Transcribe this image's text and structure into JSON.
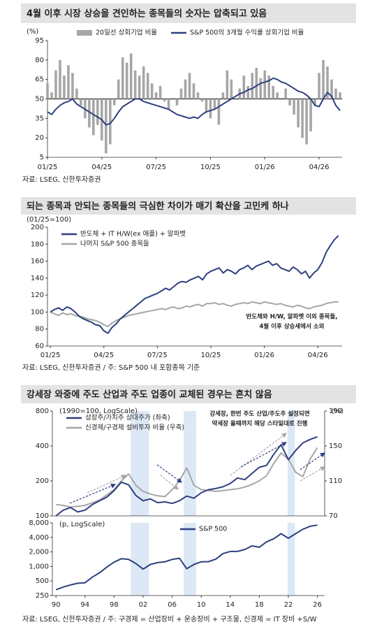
{
  "chart_data": [
    {
      "type": "combo",
      "title": "4월 이후 시장 상승을 견인하는 종목들의 숫자는 압축되고 있음",
      "y_unit": "(%)",
      "x": [
        0,
        1,
        2,
        3,
        4,
        5,
        6,
        7,
        8,
        9,
        10,
        11,
        12,
        13,
        14,
        15,
        16,
        17,
        18,
        19,
        20,
        21,
        22,
        23,
        24,
        25,
        26,
        27,
        28,
        29,
        30,
        31,
        32,
        33,
        34,
        35,
        36,
        37,
        38,
        39,
        40,
        41,
        42,
        43,
        44,
        45,
        46,
        47,
        48,
        49,
        50,
        51,
        52,
        53,
        54,
        55,
        56,
        57,
        58,
        59,
        60,
        61,
        62,
        63,
        64,
        65,
        66,
        67,
        68,
        69,
        70
      ],
      "xlim": [
        0,
        70.5
      ],
      "xticks": [
        {
          "value": 0,
          "label": "01/25"
        },
        {
          "value": 13,
          "label": "04/25"
        },
        {
          "value": 26,
          "label": "07/25"
        },
        {
          "value": 39,
          "label": "10/25"
        },
        {
          "value": 52,
          "label": "01/26"
        },
        {
          "value": 65,
          "label": "04/26"
        }
      ],
      "ylim": [
        5,
        95
      ],
      "yticks": [
        5,
        20,
        35,
        50,
        65,
        80,
        95
      ],
      "reference_line": 50,
      "legend": "top",
      "series": [
        {
          "name": "20일선 상회기업 비율",
          "type": "bar",
          "color": "#a6a6a6",
          "values": [
            62,
            55,
            72,
            80,
            68,
            76,
            70,
            58,
            45,
            35,
            28,
            22,
            30,
            18,
            8,
            15,
            45,
            65,
            82,
            78,
            85,
            72,
            68,
            75,
            70,
            62,
            55,
            60,
            48,
            42,
            50,
            45,
            58,
            65,
            70,
            62,
            55,
            48,
            40,
            35,
            42,
            30,
            55,
            72,
            65,
            50,
            58,
            68,
            60,
            70,
            74,
            66,
            72,
            68,
            60,
            55,
            50,
            58,
            45,
            38,
            28,
            20,
            15,
            25,
            45,
            70,
            80,
            75,
            65,
            58,
            55
          ]
        },
        {
          "name": "S&P 500의 3개월 수익률 상회기업 비율",
          "type": "line",
          "color": "#2e3f80",
          "values": [
            40,
            38,
            42,
            45,
            47,
            48,
            50,
            46,
            44,
            42,
            40,
            38,
            36,
            34,
            30,
            31,
            35,
            40,
            44,
            46,
            48,
            50,
            50,
            48,
            47,
            46,
            45,
            44,
            43,
            42,
            40,
            38,
            37,
            36,
            35,
            36,
            35,
            38,
            40,
            41,
            42,
            44,
            46,
            48,
            50,
            52,
            54,
            55,
            57,
            58,
            60,
            62,
            63,
            64,
            66,
            65,
            63,
            62,
            60,
            58,
            56,
            55,
            53,
            50,
            45,
            44,
            50,
            55,
            52,
            45,
            41
          ]
        }
      ],
      "source": "자료: LSEG, 신한투자증권"
    },
    {
      "type": "line",
      "title": "되는 종목과 안되는 종목들의 극심한 차이가 매기 확산을 고민케 하나",
      "y_unit": "(01/25=100)",
      "x": [
        0,
        1,
        2,
        3,
        4,
        5,
        6,
        7,
        8,
        9,
        10,
        11,
        12,
        13,
        14,
        15,
        16,
        17,
        18,
        19,
        20,
        21,
        22,
        23,
        24,
        25,
        26,
        27,
        28,
        29,
        30,
        31,
        32,
        33,
        34,
        35,
        36,
        37,
        38,
        39,
        40,
        41,
        42,
        43,
        44,
        45,
        46,
        47,
        48,
        49,
        50,
        51,
        52,
        53,
        54,
        55,
        56,
        57,
        58,
        59,
        60,
        61,
        62,
        63,
        64,
        65,
        66,
        67,
        68,
        69,
        70
      ],
      "xlim": [
        -0.7,
        70.9
      ],
      "xticks": [
        {
          "value": 0,
          "label": "01/25"
        },
        {
          "value": 13,
          "label": "04/25"
        },
        {
          "value": 26,
          "label": "07/25"
        },
        {
          "value": 39,
          "label": "10/25"
        },
        {
          "value": 52,
          "label": "01/26"
        },
        {
          "value": 65,
          "label": "04/26"
        }
      ],
      "ylim": [
        60,
        200
      ],
      "yticks": [
        60,
        80,
        100,
        120,
        140,
        160,
        180,
        200
      ],
      "legend": "upper left",
      "series": [
        {
          "name": "반도체 + IT H/W(ex 애플) + 알파벳",
          "color": "#2e3f80",
          "values": [
            100,
            103,
            105,
            102,
            106,
            104,
            100,
            95,
            92,
            90,
            88,
            85,
            84,
            78,
            75,
            82,
            86,
            92,
            96,
            100,
            104,
            108,
            112,
            116,
            118,
            120,
            122,
            125,
            128,
            126,
            130,
            134,
            136,
            135,
            138,
            140,
            142,
            138,
            145,
            148,
            150,
            152,
            146,
            150,
            148,
            145,
            150,
            152,
            155,
            150,
            154,
            156,
            158,
            160,
            155,
            157,
            152,
            150,
            148,
            153,
            150,
            145,
            148,
            140,
            146,
            150,
            158,
            170,
            178,
            185,
            190
          ]
        },
        {
          "name": "나머지 S&P 500 종목들",
          "color": "#a6a6a6",
          "values": [
            100,
            98,
            96,
            99,
            97,
            98,
            96,
            95,
            94,
            92,
            91,
            90,
            88,
            85,
            83,
            87,
            90,
            92,
            94,
            96,
            97,
            98,
            99,
            100,
            101,
            102,
            103,
            104,
            103,
            105,
            106,
            104,
            105,
            107,
            106,
            108,
            109,
            107,
            110,
            110,
            111,
            109,
            110,
            108,
            107,
            109,
            110,
            111,
            110,
            112,
            111,
            110,
            112,
            111,
            110,
            109,
            110,
            108,
            107,
            106,
            108,
            107,
            105,
            104,
            106,
            107,
            108,
            110,
            111,
            112,
            112
          ]
        }
      ],
      "annotation": [
        "반도체와 H/W, 알파벳 이외 종목들,",
        "4월 이후 상승세에서 소외"
      ],
      "source": "자료: LSEG, 신한투자증권 / 주: S&P 500 내 포함종목 기준"
    },
    {
      "type": "line",
      "title": "강세장 와중에 주도 산업과 주도 업종이 교체된 경우는 흔치 않음",
      "y_unit": "(1990=100, LogScale)",
      "y2_unit": "(%)",
      "log_scale": true,
      "x": [
        1990,
        1991,
        1992,
        1993,
        1994,
        1995,
        1996,
        1997,
        1998,
        1999,
        2000,
        2001,
        2002,
        2003,
        2004,
        2005,
        2006,
        2007,
        2008,
        2009,
        2010,
        2011,
        2012,
        2013,
        2014,
        2015,
        2016,
        2017,
        2018,
        2019,
        2020,
        2021,
        2022,
        2023,
        2024,
        2025,
        2026
      ],
      "xlim": [
        1989.5,
        2027
      ],
      "ylim": [
        100,
        800
      ],
      "yticks": [
        100,
        200,
        400,
        800
      ],
      "y2lim": [
        70,
        190
      ],
      "y2ticks": [
        70,
        110,
        150,
        190
      ],
      "highlight_ranges": [
        [
          2000.3,
          2002.8
        ],
        [
          2007.6,
          2009.3
        ],
        [
          2021.9,
          2022.9
        ]
      ],
      "legend": "upper left",
      "series": [
        {
          "name": "성장주/가치주 상대주가 (좌축)",
          "color": "#2e3f80",
          "values": [
            100,
            112,
            118,
            108,
            112,
            125,
            135,
            145,
            165,
            195,
            185,
            150,
            135,
            140,
            130,
            132,
            128,
            135,
            148,
            142,
            158,
            168,
            172,
            178,
            190,
            212,
            205,
            232,
            262,
            272,
            340,
            410,
            305,
            365,
            425,
            455,
            480
          ]
        },
        {
          "name": "신경제/구경제 설비투자 비율 (우축)",
          "color": "#a6a6a6",
          "axis": "y2",
          "values": [
            83,
            82,
            80,
            81,
            82,
            85,
            88,
            94,
            100,
            110,
            118,
            105,
            98,
            95,
            93,
            92,
            100,
            110,
            125,
            105,
            100,
            99,
            98,
            99,
            100,
            101,
            103,
            106,
            110,
            116,
            130,
            142,
            135,
            120,
            115,
            135,
            148
          ]
        }
      ],
      "annotation": [
        "강세장, 한번 주도 산업/주도주 설정되면",
        "약세장 올때까지 해당 스타일대로 진행"
      ]
    },
    {
      "type": "line",
      "y_unit": "(p, LogScale)",
      "log_scale": true,
      "x": [
        1990,
        1991,
        1992,
        1993,
        1994,
        1995,
        1996,
        1997,
        1998,
        1999,
        2000,
        2001,
        2002,
        2003,
        2004,
        2005,
        2006,
        2007,
        2008,
        2009,
        2010,
        2011,
        2012,
        2013,
        2014,
        2015,
        2016,
        2017,
        2018,
        2019,
        2020,
        2021,
        2022,
        2023,
        2024,
        2025,
        2026
      ],
      "xlim": [
        1989.5,
        2027
      ],
      "xticks": [
        {
          "value": 1990,
          "label": "90"
        },
        {
          "value": 1994,
          "label": "94"
        },
        {
          "value": 1998,
          "label": "98"
        },
        {
          "value": 2002,
          "label": "02"
        },
        {
          "value": 2006,
          "label": "06"
        },
        {
          "value": 2010,
          "label": "10"
        },
        {
          "value": 2014,
          "label": "14"
        },
        {
          "value": 2018,
          "label": "18"
        },
        {
          "value": 2022,
          "label": "22"
        },
        {
          "value": 2026,
          "label": "26"
        }
      ],
      "ylim": [
        250,
        8000
      ],
      "yticks": [
        250,
        500,
        {
          "value": 1000,
          "label": "1,000"
        },
        {
          "value": 2000,
          "label": "2,000"
        },
        {
          "value": 4000,
          "label": "4,000"
        },
        {
          "value": 8000,
          "label": "8,000"
        }
      ],
      "highlight_ranges": [
        [
          2000.3,
          2002.8
        ],
        [
          2007.6,
          2009.3
        ],
        [
          2021.9,
          2022.9
        ]
      ],
      "legend": "upper center",
      "series": [
        {
          "name": "S&P 500",
          "color": "#2e3f80",
          "values": [
            330,
            375,
            415,
            450,
            460,
            600,
            740,
            970,
            1230,
            1450,
            1400,
            1150,
            880,
            1100,
            1200,
            1250,
            1400,
            1480,
            900,
            1100,
            1250,
            1260,
            1420,
            1850,
            2050,
            2050,
            2250,
            2670,
            2500,
            3230,
            3750,
            4770,
            3840,
            4770,
            5880,
            6800,
            7200
          ]
        }
      ],
      "source": "자료: LSEG, 신한투자증권 / 주: 구경제 = 산업장비 + 운송장비 + 구조물, 신경제 = IT 장비 +S/W"
    }
  ]
}
